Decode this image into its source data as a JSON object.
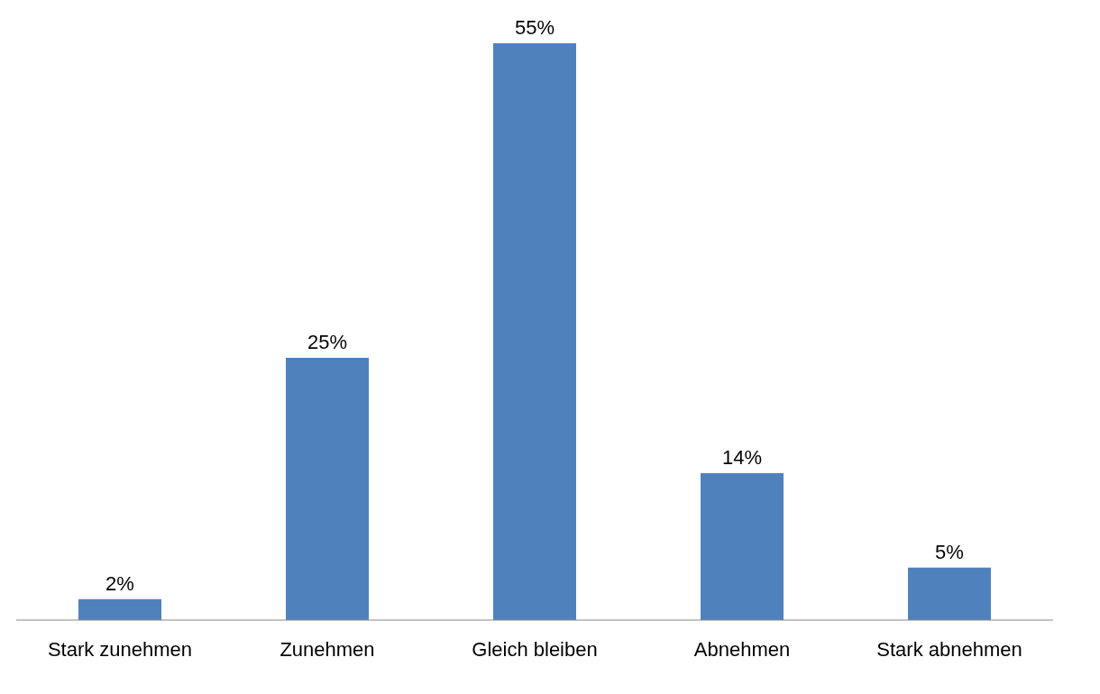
{
  "chart_data": {
    "type": "bar",
    "categories": [
      "Stark zunehmen",
      "Zunehmen",
      "Gleich bleiben",
      "Abnehmen",
      "Stark abnehmen"
    ],
    "values": [
      2,
      25,
      55,
      14,
      5
    ],
    "value_labels": [
      "2%",
      "25%",
      "55%",
      "14%",
      "5%"
    ],
    "color": "#4f81bd",
    "grid": false,
    "legend": false
  }
}
